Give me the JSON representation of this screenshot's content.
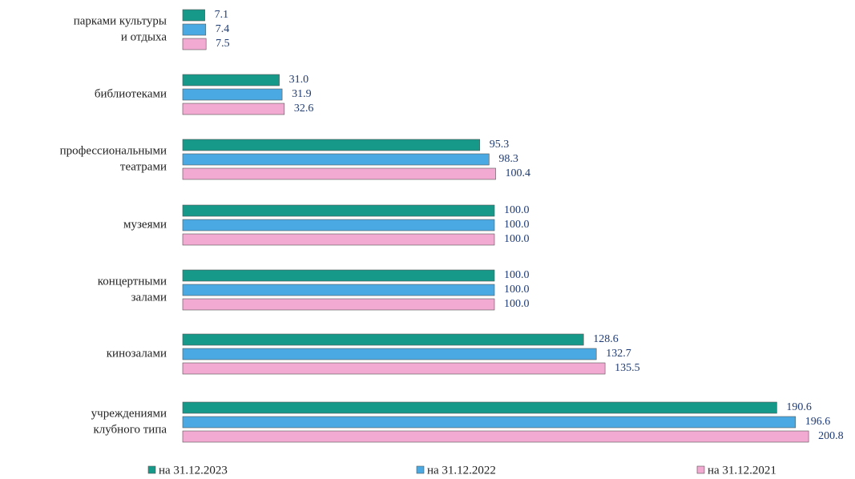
{
  "chart_data": {
    "type": "bar",
    "orientation": "horizontal",
    "categories": [
      [
        "парками культуры",
        "и отдыха"
      ],
      [
        "библиотеками"
      ],
      [
        "профессиональными",
        "театрами"
      ],
      [
        "музеями"
      ],
      [
        "концертными",
        "залами"
      ],
      [
        "кинозалами"
      ],
      [
        "учреждениями",
        "клубного типа"
      ]
    ],
    "series": [
      {
        "name": "на 31.12.2023",
        "color": "#17998a",
        "values": [
          7.1,
          31.0,
          95.3,
          100.0,
          100.0,
          128.6,
          190.6
        ],
        "value_labels": [
          "7.1",
          "31.0",
          "95.3",
          "100.0",
          "100.0",
          "128.6",
          "190.6"
        ]
      },
      {
        "name": "на 31.12.2022",
        "color": "#4aa9e2",
        "values": [
          7.4,
          31.9,
          98.3,
          100.0,
          100.0,
          132.7,
          196.6
        ],
        "value_labels": [
          "7.4",
          "31.9",
          "98.3",
          "100.0",
          "100.0",
          "132.7",
          "196.6"
        ]
      },
      {
        "name": "на 31.12.2021",
        "color": "#f2a9d2",
        "values": [
          7.5,
          32.6,
          100.4,
          100.0,
          100.0,
          135.5,
          200.8
        ],
        "value_labels": [
          "7.5",
          "32.6",
          "100.4",
          "100.0",
          "100.0",
          "135.5",
          "200.8"
        ]
      }
    ],
    "xlim": [
      0,
      200
    ]
  }
}
